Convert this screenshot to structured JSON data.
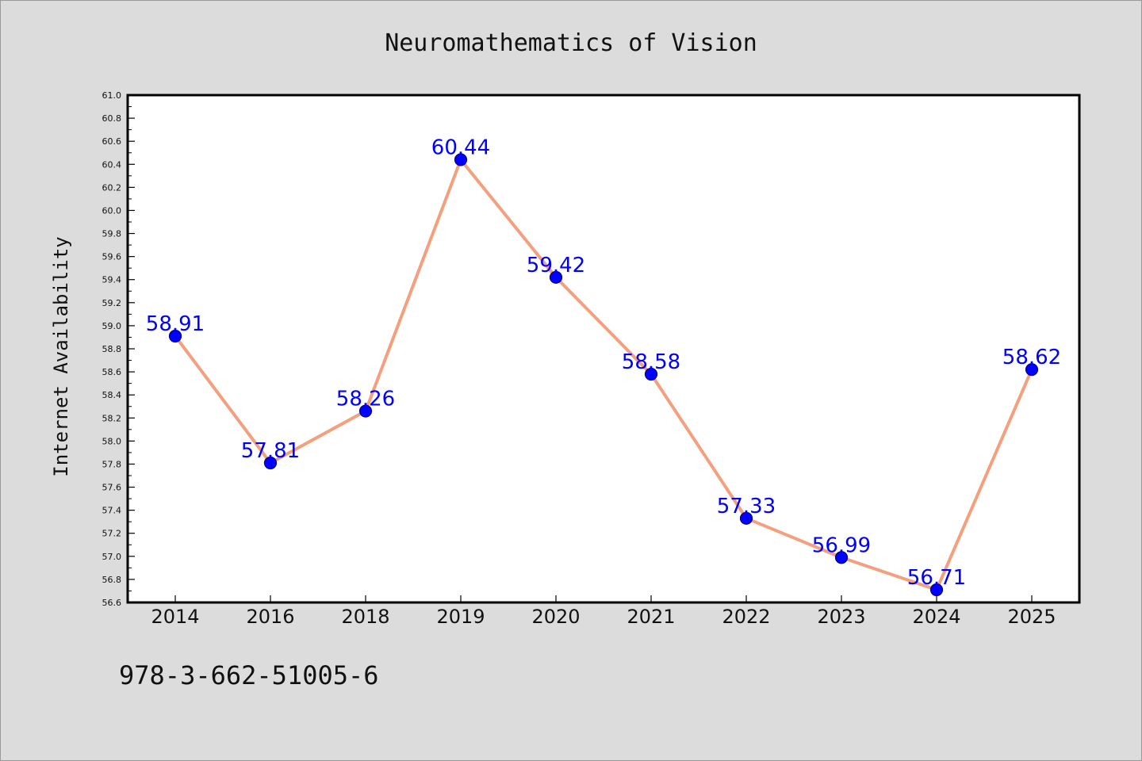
{
  "page": {
    "isbn": "978-3-662-51005-6"
  },
  "chart_data": {
    "type": "line",
    "title": "Neuromathematics of Vision",
    "xlabel": "",
    "ylabel": "Internet Availability",
    "categories": [
      "2014",
      "2016",
      "2018",
      "2019",
      "2020",
      "2021",
      "2022",
      "2023",
      "2024",
      "2025"
    ],
    "values": [
      58.91,
      57.81,
      58.26,
      60.44,
      59.42,
      58.58,
      57.33,
      56.99,
      56.71,
      58.62
    ],
    "data_labels": [
      "58.91",
      "57.81",
      "58.26",
      "60.44",
      "59.42",
      "58.58",
      "57.33",
      "56.99",
      "56.71",
      "58.62"
    ],
    "ylim": [
      56.6,
      61.0
    ],
    "yticks": [
      "56.6",
      "56.8",
      "57.0",
      "57.2",
      "57.4",
      "57.6",
      "57.8",
      "58.0",
      "58.2",
      "58.4",
      "58.6",
      "58.8",
      "59.0",
      "59.2",
      "59.4",
      "59.6",
      "59.8",
      "60.0",
      "60.2",
      "60.4",
      "60.6",
      "60.8",
      "61.0"
    ],
    "grid": false,
    "legend": "none",
    "colors": {
      "line": "#f4a07e",
      "marker": "#0000ff",
      "marker_edge": "#000080",
      "data_label": "#0000ff",
      "plot_background": "#ffffff",
      "figure_background": "#dcdcdc"
    }
  }
}
